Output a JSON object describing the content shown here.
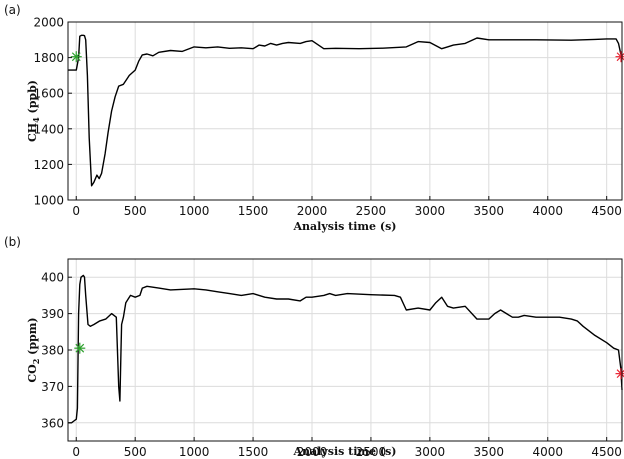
{
  "chart_data": [
    {
      "type": "line",
      "panel_label": "(a)",
      "xlabel": "Analysis time (s)",
      "ylabel": "CH",
      "ylabel_subscript": "4",
      "ylabel_unit": " (ppb)",
      "xlim": [
        -70,
        4630
      ],
      "ylim": [
        1000,
        2000
      ],
      "xticks": [
        0,
        500,
        1000,
        1500,
        2000,
        2500,
        3000,
        3500,
        4000,
        4500
      ],
      "yticks": [
        1000,
        1200,
        1400,
        1600,
        1800,
        2000
      ],
      "grid": true,
      "series": [
        {
          "x": [
            -70,
            -25,
            0,
            20,
            30,
            45,
            60,
            70,
            80,
            95,
            110,
            130,
            150,
            175,
            195,
            215,
            245,
            270,
            300,
            330,
            360,
            400,
            450,
            500,
            530,
            560,
            600,
            650,
            700,
            800,
            900,
            1000,
            1100,
            1200,
            1300,
            1400,
            1500,
            1550,
            1600,
            1650,
            1700,
            1750,
            1800,
            1900,
            1950,
            2000,
            2100,
            2200,
            2400,
            2600,
            2800,
            2900,
            3000,
            3100,
            3150,
            3200,
            3300,
            3400,
            3500,
            3700,
            3900,
            4200,
            4400,
            4500,
            4580,
            4600,
            4620,
            4630
          ],
          "y": [
            1730,
            1730,
            1730,
            1800,
            1920,
            1925,
            1925,
            1923,
            1900,
            1700,
            1350,
            1080,
            1100,
            1140,
            1120,
            1150,
            1260,
            1380,
            1500,
            1580,
            1640,
            1650,
            1700,
            1730,
            1780,
            1815,
            1820,
            1810,
            1830,
            1840,
            1835,
            1860,
            1855,
            1860,
            1852,
            1855,
            1850,
            1870,
            1865,
            1880,
            1870,
            1880,
            1885,
            1880,
            1890,
            1895,
            1850,
            1852,
            1850,
            1853,
            1860,
            1890,
            1885,
            1850,
            1860,
            1870,
            1880,
            1910,
            1900,
            1900,
            1900,
            1898,
            1902,
            1905,
            1905,
            1880,
            1820,
            1800
          ]
        }
      ],
      "markers": [
        {
          "x": 0,
          "y": 1805,
          "symbol": "star",
          "color": "#2ca02c"
        },
        {
          "x": 4630,
          "y": 1805,
          "symbol": "star",
          "color": "#e8212f"
        }
      ]
    },
    {
      "type": "line",
      "panel_label": "(b)",
      "xlabel": "Analysis time (s)",
      "ylabel": "CO",
      "ylabel_subscript": "2",
      "ylabel_unit": " (ppm)",
      "xlim": [
        -70,
        4630
      ],
      "ylim": [
        355,
        405
      ],
      "xticks": [
        0,
        500,
        1000,
        1500,
        2000,
        2500,
        3000,
        3500,
        4000,
        4500
      ],
      "yticks": [
        360,
        370,
        380,
        390,
        400
      ],
      "grid": true,
      "series": [
        {
          "x": [
            -70,
            -40,
            -20,
            0,
            10,
            20,
            30,
            40,
            60,
            70,
            80,
            100,
            120,
            150,
            200,
            250,
            300,
            340,
            360,
            370,
            380,
            385,
            400,
            420,
            460,
            500,
            540,
            560,
            600,
            700,
            800,
            1000,
            1100,
            1200,
            1300,
            1400,
            1500,
            1600,
            1700,
            1800,
            1900,
            1950,
            2000,
            2100,
            2150,
            2200,
            2300,
            2500,
            2700,
            2750,
            2800,
            2900,
            3000,
            3050,
            3100,
            3150,
            3200,
            3300,
            3400,
            3500,
            3550,
            3600,
            3650,
            3700,
            3750,
            3800,
            3900,
            4000,
            4100,
            4200,
            4250,
            4300,
            4400,
            4500,
            4560,
            4600,
            4620,
            4630
          ],
          "y": [
            360,
            360,
            360.5,
            361,
            364,
            390,
            398,
            400,
            400.5,
            400,
            395,
            387,
            386.5,
            387,
            388,
            388.5,
            390,
            389,
            370,
            366,
            380,
            387,
            389,
            393,
            395,
            394.5,
            395,
            397,
            397.5,
            397,
            396.5,
            396.8,
            396.5,
            396,
            395.5,
            395,
            395.5,
            394.5,
            394,
            394,
            393.5,
            394.5,
            394.5,
            395,
            395.5,
            395,
            395.5,
            395.2,
            395,
            394.5,
            391,
            391.5,
            391,
            393,
            394.5,
            392,
            391.5,
            392,
            388.5,
            388.5,
            390,
            391,
            390,
            389,
            389,
            389.5,
            389,
            389,
            389,
            388.5,
            388,
            386.5,
            384,
            382,
            380.5,
            380,
            375,
            369
          ]
        }
      ],
      "markers": [
        {
          "x": 30,
          "y": 380.5,
          "symbol": "star",
          "color": "#2ca02c"
        },
        {
          "x": 4630,
          "y": 373.5,
          "symbol": "star",
          "color": "#e8212f"
        }
      ]
    }
  ]
}
